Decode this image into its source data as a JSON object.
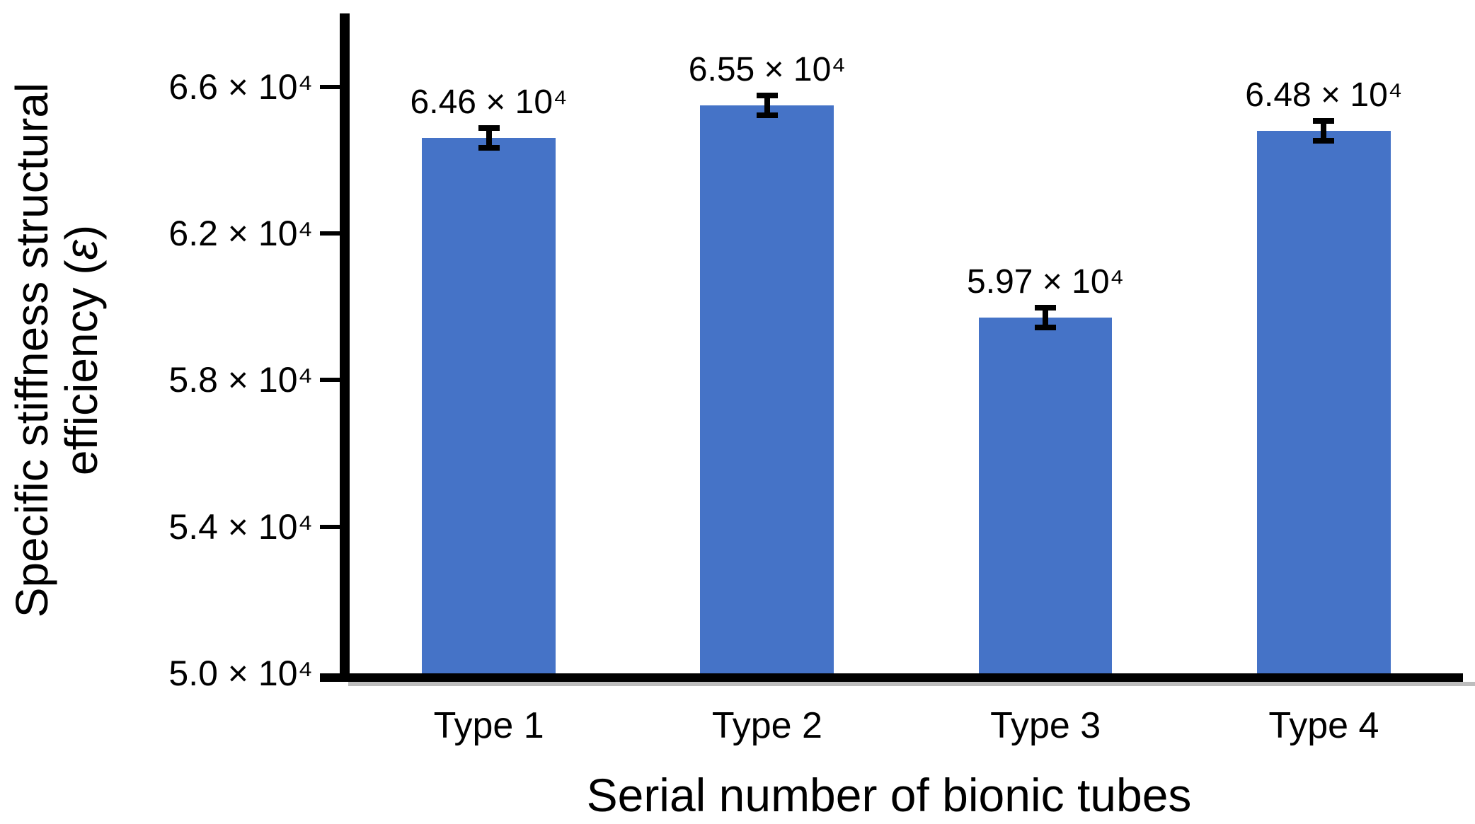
{
  "chart_data": {
    "type": "bar",
    "title": "",
    "categories": [
      "Type 1",
      "Type 2",
      "Type 3",
      "Type 4"
    ],
    "values": [
      64600,
      65500,
      59700,
      64800
    ],
    "value_labels": [
      "6.46 × 10⁴",
      "6.55 × 10⁴",
      "5.97 × 10⁴",
      "6.48 × 10⁴"
    ],
    "errors": [
      270,
      270,
      270,
      270
    ],
    "xlabel": "Serial number of bionic tubes",
    "ylabel": "Specific stiffness structural efficiency (ε)",
    "ylabel_lines": {
      "line1": "Specific stiffness structural",
      "line2_prefix": "efficiency (",
      "epsilon": "ε",
      "line2_suffix": ")"
    },
    "ylim": [
      50000,
      68000
    ],
    "yticks": [
      {
        "value": 50000,
        "label": "5.0 × 10⁴"
      },
      {
        "value": 54000,
        "label": "5.4 × 10⁴"
      },
      {
        "value": 58000,
        "label": "5.8 × 10⁴"
      },
      {
        "value": 62000,
        "label": "6.2 × 10⁴"
      },
      {
        "value": 66000,
        "label": "6.6 × 10⁴"
      }
    ],
    "grid": false,
    "legend_position": "none",
    "bar_color": "#4573C7",
    "axis_color": "#000000",
    "background_color": "#FFFFFF"
  }
}
